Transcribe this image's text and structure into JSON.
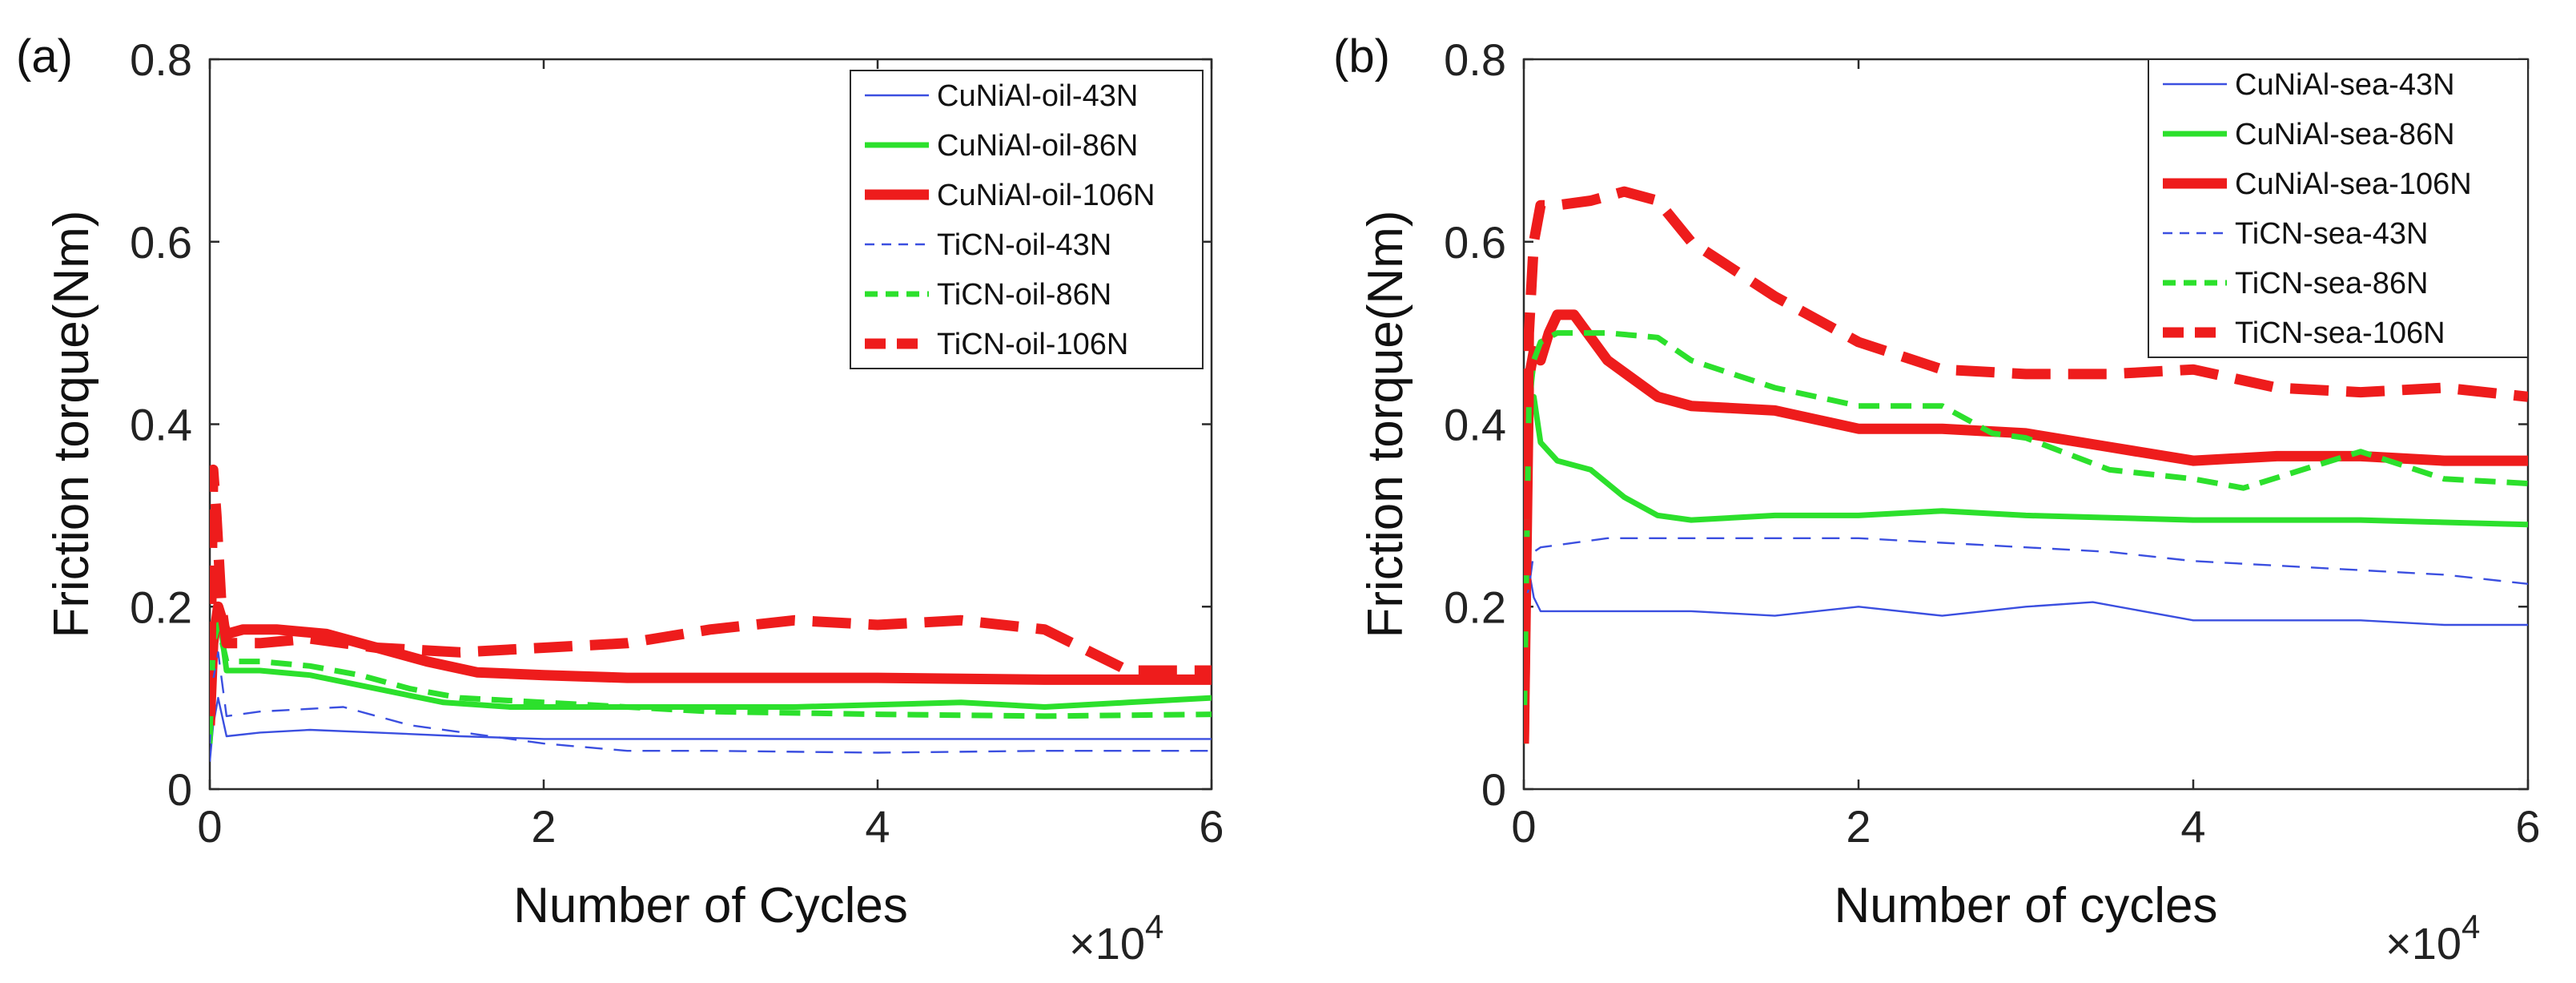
{
  "chart_data": [
    {
      "type": "line",
      "panel_label": "(a)",
      "xlabel": "Number of Cycles",
      "ylabel": "Friction torque(Nm)",
      "x_multiplier_base": "×10",
      "x_multiplier_exp": "4",
      "xlim": [
        0,
        6
      ],
      "ylim": [
        0,
        0.8
      ],
      "xticks": [
        0,
        2,
        4,
        6
      ],
      "yticks": [
        0,
        0.2,
        0.4,
        0.6,
        0.8
      ],
      "xtick_labels": [
        "0",
        "2",
        "4",
        "6"
      ],
      "ytick_labels": [
        "0",
        "0.2",
        "0.4",
        "0.6",
        "0.8"
      ],
      "legend_position": "top-right",
      "series": [
        {
          "name": "CuNiAl-oil-43N",
          "color": "#3b4fe0",
          "style": "solid",
          "weight": "thin",
          "x": [
            0,
            0.02,
            0.05,
            0.1,
            0.3,
            0.6,
            1.0,
            1.5,
            2.0,
            3.0,
            4.0,
            5.0,
            6.0
          ],
          "y": [
            0.03,
            0.07,
            0.1,
            0.058,
            0.062,
            0.065,
            0.062,
            0.058,
            0.055,
            0.055,
            0.055,
            0.055,
            0.055
          ]
        },
        {
          "name": "CuNiAl-oil-86N",
          "color": "#2ce02c",
          "style": "solid",
          "weight": "medium",
          "x": [
            0,
            0.02,
            0.05,
            0.1,
            0.3,
            0.6,
            1.0,
            1.4,
            1.8,
            2.5,
            3.5,
            4.5,
            5.0,
            5.5,
            6.0
          ],
          "y": [
            0.05,
            0.13,
            0.2,
            0.13,
            0.13,
            0.125,
            0.11,
            0.095,
            0.09,
            0.09,
            0.09,
            0.095,
            0.09,
            0.095,
            0.1
          ]
        },
        {
          "name": "CuNiAl-oil-106N",
          "color": "#ee1c1c",
          "style": "solid",
          "weight": "thick",
          "x": [
            0,
            0.02,
            0.05,
            0.1,
            0.2,
            0.4,
            0.7,
            1.0,
            1.3,
            1.6,
            2.0,
            2.5,
            3.0,
            4.0,
            5.0,
            6.0
          ],
          "y": [
            0.07,
            0.16,
            0.2,
            0.17,
            0.175,
            0.175,
            0.17,
            0.155,
            0.14,
            0.128,
            0.125,
            0.122,
            0.122,
            0.122,
            0.12,
            0.12
          ]
        },
        {
          "name": "TiCN-oil-43N",
          "color": "#3b4fe0",
          "style": "dashed",
          "weight": "thin",
          "x": [
            0,
            0.02,
            0.05,
            0.1,
            0.3,
            0.8,
            1.2,
            1.6,
            2.0,
            2.5,
            3.0,
            4.0,
            5.0,
            6.0
          ],
          "y": [
            0.05,
            0.12,
            0.15,
            0.08,
            0.085,
            0.09,
            0.07,
            0.06,
            0.05,
            0.042,
            0.042,
            0.04,
            0.042,
            0.042
          ]
        },
        {
          "name": "TiCN-oil-86N",
          "color": "#2ce02c",
          "style": "dashed",
          "weight": "medium",
          "x": [
            0,
            0.02,
            0.05,
            0.1,
            0.3,
            0.6,
            0.9,
            1.2,
            1.5,
            2.0,
            2.5,
            3.0,
            4.0,
            5.0,
            6.0
          ],
          "y": [
            0.06,
            0.16,
            0.18,
            0.14,
            0.14,
            0.135,
            0.125,
            0.11,
            0.1,
            0.095,
            0.09,
            0.085,
            0.082,
            0.08,
            0.082
          ]
        },
        {
          "name": "TiCN-oil-106N",
          "color": "#ee1c1c",
          "style": "dashed",
          "weight": "thick",
          "x": [
            0,
            0.02,
            0.04,
            0.07,
            0.1,
            0.3,
            0.6,
            1.0,
            1.5,
            2.0,
            2.5,
            3.0,
            3.5,
            4.0,
            4.5,
            5.0,
            5.5,
            6.0
          ],
          "y": [
            0.08,
            0.35,
            0.3,
            0.2,
            0.16,
            0.16,
            0.165,
            0.155,
            0.15,
            0.155,
            0.16,
            0.175,
            0.185,
            0.18,
            0.185,
            0.175,
            0.13,
            0.13
          ]
        }
      ]
    },
    {
      "type": "line",
      "panel_label": "(b)",
      "xlabel": "Number of cycles",
      "ylabel": "Friction torque(Nm)",
      "x_multiplier_base": "×10",
      "x_multiplier_exp": "4",
      "xlim": [
        0,
        6
      ],
      "ylim": [
        0,
        0.8
      ],
      "xticks": [
        0,
        2,
        4,
        6
      ],
      "yticks": [
        0,
        0.2,
        0.4,
        0.6,
        0.8
      ],
      "xtick_labels": [
        "0",
        "2",
        "4",
        "6"
      ],
      "ytick_labels": [
        "0",
        "0.2",
        "0.4",
        "0.6",
        "0.8"
      ],
      "legend_position": "top-right",
      "series": [
        {
          "name": "CuNiAl-sea-43N",
          "color": "#3b4fe0",
          "style": "solid",
          "weight": "thin",
          "x": [
            0,
            0.03,
            0.06,
            0.1,
            0.5,
            1.0,
            1.5,
            2.0,
            2.5,
            3.0,
            3.4,
            4.0,
            4.5,
            5.0,
            5.5,
            6.0
          ],
          "y": [
            0.2,
            0.24,
            0.21,
            0.195,
            0.195,
            0.195,
            0.19,
            0.2,
            0.19,
            0.2,
            0.205,
            0.185,
            0.185,
            0.185,
            0.18,
            0.18
          ]
        },
        {
          "name": "CuNiAl-sea-86N",
          "color": "#2ce02c",
          "style": "solid",
          "weight": "medium",
          "x": [
            0,
            0.03,
            0.06,
            0.1,
            0.2,
            0.4,
            0.6,
            0.8,
            1.0,
            1.5,
            2.0,
            2.5,
            3.0,
            4.0,
            5.0,
            6.0
          ],
          "y": [
            0.05,
            0.4,
            0.43,
            0.38,
            0.36,
            0.35,
            0.32,
            0.3,
            0.295,
            0.3,
            0.3,
            0.305,
            0.3,
            0.295,
            0.295,
            0.29
          ]
        },
        {
          "name": "CuNiAl-sea-106N",
          "color": "#ee1c1c",
          "style": "solid",
          "weight": "thick",
          "x": [
            0,
            0.03,
            0.06,
            0.1,
            0.15,
            0.2,
            0.3,
            0.5,
            0.8,
            1.0,
            1.5,
            2.0,
            2.5,
            3.0,
            3.5,
            4.0,
            4.5,
            5.0,
            5.5,
            6.0
          ],
          "y": [
            0.05,
            0.45,
            0.48,
            0.47,
            0.5,
            0.52,
            0.52,
            0.47,
            0.43,
            0.42,
            0.415,
            0.395,
            0.395,
            0.39,
            0.375,
            0.36,
            0.365,
            0.365,
            0.36,
            0.36
          ]
        },
        {
          "name": "TiCN-sea-43N",
          "color": "#3b4fe0",
          "style": "dashed",
          "weight": "thin",
          "x": [
            0,
            0.03,
            0.06,
            0.1,
            0.5,
            1.0,
            1.5,
            2.0,
            2.5,
            3.0,
            3.5,
            4.0,
            4.5,
            5.0,
            5.5,
            6.0
          ],
          "y": [
            0.2,
            0.22,
            0.26,
            0.265,
            0.275,
            0.275,
            0.275,
            0.275,
            0.27,
            0.265,
            0.26,
            0.25,
            0.245,
            0.24,
            0.235,
            0.225
          ]
        },
        {
          "name": "TiCN-sea-86N",
          "color": "#2ce02c",
          "style": "dashed",
          "weight": "medium",
          "x": [
            0,
            0.03,
            0.06,
            0.1,
            0.2,
            0.5,
            0.8,
            1.0,
            1.5,
            2.0,
            2.5,
            2.8,
            3.0,
            3.5,
            4.0,
            4.3,
            5.0,
            5.5,
            6.0
          ],
          "y": [
            0.05,
            0.42,
            0.47,
            0.49,
            0.5,
            0.5,
            0.495,
            0.47,
            0.44,
            0.42,
            0.42,
            0.39,
            0.385,
            0.35,
            0.34,
            0.33,
            0.37,
            0.34,
            0.335
          ]
        },
        {
          "name": "TiCN-sea-106N",
          "color": "#ee1c1c",
          "style": "dashed",
          "weight": "thick",
          "x": [
            0,
            0.03,
            0.06,
            0.1,
            0.2,
            0.4,
            0.6,
            0.8,
            1.0,
            1.5,
            2.0,
            2.5,
            3.0,
            3.5,
            4.0,
            4.5,
            5.0,
            5.5,
            6.0
          ],
          "y": [
            0.05,
            0.5,
            0.6,
            0.64,
            0.64,
            0.645,
            0.655,
            0.645,
            0.6,
            0.54,
            0.49,
            0.46,
            0.455,
            0.455,
            0.46,
            0.44,
            0.435,
            0.44,
            0.43
          ]
        }
      ]
    }
  ]
}
